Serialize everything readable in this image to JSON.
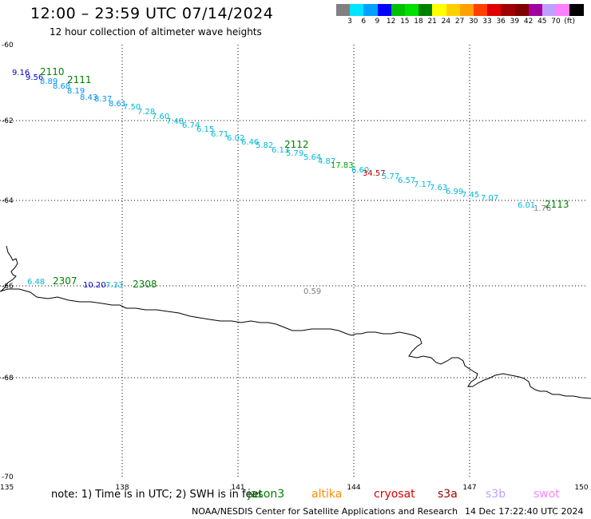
{
  "header": {
    "title": "12:00 – 23:59 UTC 07/14/2024",
    "subtitle": "12 hour collection of altimeter wave heights"
  },
  "colorbar": {
    "swatches": [
      "#808080",
      "#00e5ff",
      "#00a0ff",
      "#0000ff",
      "#00c000",
      "#00e000",
      "#008000",
      "#ffff00",
      "#ffd000",
      "#ffa000",
      "#ff4000",
      "#e00000",
      "#a00000",
      "#800000",
      "#a000a0",
      "#c0a0ff",
      "#ff80ff",
      "#000000"
    ],
    "labels": [
      "3",
      "6",
      "9",
      "12",
      "15",
      "18",
      "21",
      "24",
      "27",
      "30",
      "33",
      "36",
      "39",
      "42",
      "45",
      "70",
      "(ft)"
    ]
  },
  "axes": {
    "x_ticks": [
      "135",
      "138",
      "141",
      "144",
      "147",
      "150"
    ],
    "y_ticks": [
      "-60",
      "-62",
      "-64",
      "-66",
      "-68",
      "-70"
    ]
  },
  "pass_labels": [
    {
      "text": "2110",
      "color": "#008000"
    },
    {
      "text": "2111",
      "color": "#008000"
    },
    {
      "text": "2112",
      "color": "#008000"
    },
    {
      "text": "2113",
      "color": "#008000"
    },
    {
      "text": "2307",
      "color": "#008000"
    },
    {
      "text": "2308",
      "color": "#008000"
    }
  ],
  "wave_readings": [
    {
      "text": "9.16",
      "color": "#0000cc"
    },
    {
      "text": "9.56",
      "color": "#0000cc"
    },
    {
      "text": "8.89",
      "color": "#0090ff"
    },
    {
      "text": "8.68",
      "color": "#0090ff"
    },
    {
      "text": "8.19",
      "color": "#0090ff"
    },
    {
      "text": "8.43",
      "color": "#0090ff"
    },
    {
      "text": "8.37",
      "color": "#0090ff"
    },
    {
      "text": "8.61",
      "color": "#0090ff"
    },
    {
      "text": "7.50",
      "color": "#00b8d8"
    },
    {
      "text": "7.28",
      "color": "#00b8d8"
    },
    {
      "text": "7.60",
      "color": "#00b8d8"
    },
    {
      "text": "7.48",
      "color": "#00b8d8"
    },
    {
      "text": "6.74",
      "color": "#00b8d8"
    },
    {
      "text": "6.15",
      "color": "#00b8d8"
    },
    {
      "text": "6.71",
      "color": "#00b8d8"
    },
    {
      "text": "6.02",
      "color": "#00b8d8"
    },
    {
      "text": "6.46",
      "color": "#00b8d8"
    },
    {
      "text": "5.82",
      "color": "#00b8d8"
    },
    {
      "text": "6.13",
      "color": "#00b8d8"
    },
    {
      "text": "5.79",
      "color": "#00b8d8"
    },
    {
      "text": "5.64",
      "color": "#00b8d8"
    },
    {
      "text": "4.87",
      "color": "#00b8d8"
    },
    {
      "text": "17.83",
      "color": "#00a000"
    },
    {
      "text": "6.60",
      "color": "#00b8d8"
    },
    {
      "text": "34.57",
      "color": "#b00000"
    },
    {
      "text": "5.77",
      "color": "#00b8d8"
    },
    {
      "text": "6.57",
      "color": "#00b8d8"
    },
    {
      "text": "7.17",
      "color": "#00b8d8"
    },
    {
      "text": "7.63",
      "color": "#00b8d8"
    },
    {
      "text": "6.99",
      "color": "#00b8d8"
    },
    {
      "text": "7.45",
      "color": "#00b8d8"
    },
    {
      "text": "7.07",
      "color": "#00b8d8"
    },
    {
      "text": "6.01",
      "color": "#00b8d8"
    },
    {
      "text": "1.76",
      "color": "#808080"
    },
    {
      "text": "6.48",
      "color": "#00b8d8"
    },
    {
      "text": "10.20",
      "color": "#0000cc"
    },
    {
      "text": "7.33",
      "color": "#00b8d8"
    },
    {
      "text": "0.59",
      "color": "#808080"
    }
  ],
  "footer": {
    "note": "note:  1) Time is in UTC;  2) SWH is in feet",
    "satellites": [
      {
        "name": "jason3",
        "color": "#008000"
      },
      {
        "name": "altika",
        "color": "#ff8c00"
      },
      {
        "name": "cryosat",
        "color": "#e00000"
      },
      {
        "name": "s3a",
        "color": "#a00000"
      },
      {
        "name": "s3b",
        "color": "#c0a0ff"
      },
      {
        "name": "swot",
        "color": "#ff80ff"
      }
    ],
    "credit": "NOAA/NESDIS Center for Satellite Applications and Research",
    "generated": "14 Dec 17:22:40 UTC 2024"
  }
}
